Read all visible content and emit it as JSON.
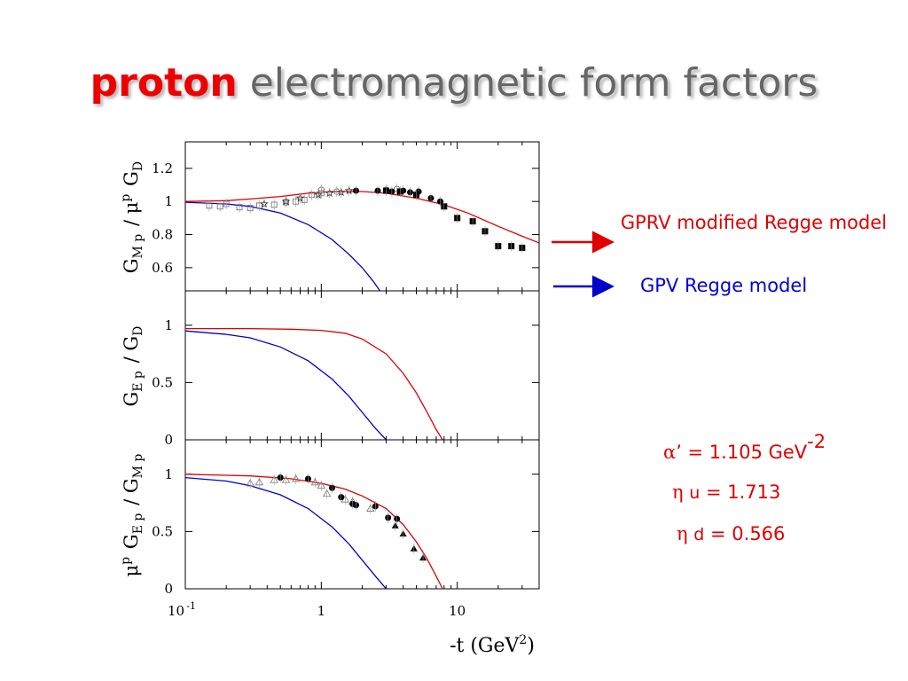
{
  "title": {
    "word1": "proton",
    "word2": "electromagnetic form factors"
  },
  "legend": {
    "red": "GPRV modified  Regge model",
    "blue": "GPV Regge model"
  },
  "params": {
    "alpha": {
      "symbol": "α",
      "rest": "’ = 1.105 GeV",
      "sup": "-2"
    },
    "eta_u": {
      "symbol": "η",
      "sub": "u",
      "rest": " = 1.713"
    },
    "eta_d": {
      "symbol": "η",
      "sub": "d",
      "rest": " = 0.566"
    }
  },
  "colors": {
    "red": "#e00000",
    "blue": "#0000cc"
  },
  "chart_data": [
    {
      "type": "line",
      "panel": "top",
      "ylabel": "G_M^p / μ^p G_D",
      "xscale": "log",
      "xlim": [
        0.1,
        40
      ],
      "ylim": [
        0.46,
        1.36
      ],
      "yticks": [
        0.6,
        0.8,
        1,
        1.2
      ],
      "ytick_labels": [
        "0.6",
        "0.8",
        "1",
        "1.2"
      ],
      "series": [
        {
          "color": "red",
          "x": [
            0.1,
            0.2,
            0.3,
            0.5,
            0.8,
            1.2,
            2,
            3,
            5,
            8,
            12,
            20,
            30,
            40
          ],
          "y": [
            1.0,
            1.005,
            1.015,
            1.03,
            1.05,
            1.06,
            1.06,
            1.05,
            1.02,
            0.98,
            0.93,
            0.85,
            0.79,
            0.75
          ]
        },
        {
          "color": "blue",
          "x": [
            0.1,
            0.2,
            0.3,
            0.5,
            0.8,
            1.2,
            1.6,
            2.0,
            2.4,
            2.7
          ],
          "y": [
            0.995,
            0.985,
            0.97,
            0.93,
            0.86,
            0.77,
            0.68,
            0.6,
            0.52,
            0.46
          ]
        }
      ],
      "points": [
        {
          "marker": "open-square",
          "x": [
            0.15,
            0.18,
            0.2,
            0.25,
            0.3,
            0.35,
            0.45,
            0.55,
            0.65,
            0.75,
            0.85,
            1.0
          ],
          "y": [
            0.975,
            0.97,
            0.985,
            0.965,
            0.96,
            0.975,
            0.98,
            0.995,
            1.0,
            1.01,
            1.04,
            1.05
          ]
        },
        {
          "marker": "open-star",
          "x": [
            0.38,
            0.55,
            0.7,
            0.95,
            1.15,
            1.4,
            1.6
          ],
          "y": [
            0.985,
            1.0,
            1.02,
            1.04,
            1.05,
            1.055,
            1.065
          ]
        },
        {
          "marker": "open-circle",
          "x": [
            1.0,
            1.3,
            3.0,
            3.6
          ],
          "y": [
            1.07,
            1.06,
            1.07,
            1.075
          ]
        },
        {
          "marker": "filled-circle",
          "x": [
            1.8,
            2.6,
            3.3,
            4.0,
            4.5,
            5.2,
            6.4,
            7.5
          ],
          "y": [
            1.065,
            1.065,
            1.06,
            1.065,
            1.055,
            1.06,
            1.02,
            1.0
          ]
        },
        {
          "marker": "filled-square",
          "x": [
            3.0,
            3.8,
            5.0,
            8.0,
            10,
            13,
            16,
            20,
            25,
            30
          ],
          "y": [
            1.065,
            1.06,
            1.04,
            0.97,
            0.9,
            0.88,
            0.82,
            0.73,
            0.73,
            0.72
          ]
        }
      ]
    },
    {
      "type": "line",
      "panel": "middle",
      "ylabel": "G_E^p / G_D",
      "xscale": "log",
      "xlim": [
        0.1,
        40
      ],
      "ylim": [
        0,
        1.3
      ],
      "yticks": [
        0,
        0.5,
        1
      ],
      "ytick_labels": [
        "0",
        "0.5",
        "1"
      ],
      "series": [
        {
          "color": "red",
          "x": [
            0.1,
            0.3,
            0.6,
            1.0,
            1.5,
            2.0,
            3.0,
            4.0,
            5.0,
            6.0,
            7.0,
            7.8
          ],
          "y": [
            0.97,
            0.97,
            0.965,
            0.955,
            0.93,
            0.88,
            0.75,
            0.58,
            0.41,
            0.24,
            0.09,
            0.0
          ]
        },
        {
          "color": "blue",
          "x": [
            0.1,
            0.2,
            0.3,
            0.5,
            0.8,
            1.2,
            1.6,
            2.0,
            2.5,
            3.0
          ],
          "y": [
            0.95,
            0.92,
            0.89,
            0.81,
            0.69,
            0.53,
            0.38,
            0.24,
            0.1,
            0.0
          ]
        }
      ]
    },
    {
      "type": "line",
      "panel": "bottom",
      "ylabel": "μ^p G_E^p / G_M^p",
      "xlabel": "-t (GeV^2)",
      "xscale": "log",
      "xlim": [
        0.1,
        40
      ],
      "ylim": [
        0,
        1.3
      ],
      "yticks": [
        0,
        0.5,
        1
      ],
      "ytick_labels": [
        "0",
        "0.5",
        "1"
      ],
      "xticks": [
        0.1,
        1,
        10
      ],
      "xtick_labels": [
        "10 -1",
        "1",
        "10"
      ],
      "series": [
        {
          "color": "red",
          "x": [
            0.1,
            0.3,
            0.6,
            1.0,
            1.5,
            2.0,
            3.0,
            4.0,
            5.0,
            6.0,
            7.0,
            7.8
          ],
          "y": [
            1.0,
            0.985,
            0.96,
            0.92,
            0.87,
            0.81,
            0.7,
            0.56,
            0.41,
            0.26,
            0.11,
            0.0
          ]
        },
        {
          "color": "blue",
          "x": [
            0.1,
            0.2,
            0.3,
            0.5,
            0.8,
            1.2,
            1.6,
            2.0,
            2.5,
            3.0
          ],
          "y": [
            0.97,
            0.94,
            0.9,
            0.82,
            0.7,
            0.54,
            0.39,
            0.25,
            0.11,
            0.0
          ]
        }
      ],
      "points": [
        {
          "marker": "open-triangle",
          "x": [
            0.3,
            0.35,
            0.45,
            0.55,
            0.65,
            0.9,
            1.0,
            1.1,
            1.5,
            1.7,
            2.3
          ],
          "y": [
            0.92,
            0.93,
            0.95,
            0.95,
            0.96,
            0.93,
            0.9,
            0.83,
            0.78,
            0.76,
            0.7
          ]
        },
        {
          "marker": "filled-circle",
          "x": [
            0.5,
            0.8,
            1.2,
            1.4,
            1.7,
            1.8,
            2.5,
            3.1,
            3.6
          ],
          "y": [
            0.97,
            0.96,
            0.88,
            0.8,
            0.74,
            0.73,
            0.72,
            0.62,
            0.61
          ]
        },
        {
          "marker": "filled-triangle",
          "x": [
            3.5,
            4.0,
            4.8,
            5.6
          ],
          "y": [
            0.55,
            0.48,
            0.35,
            0.27
          ]
        }
      ]
    }
  ]
}
